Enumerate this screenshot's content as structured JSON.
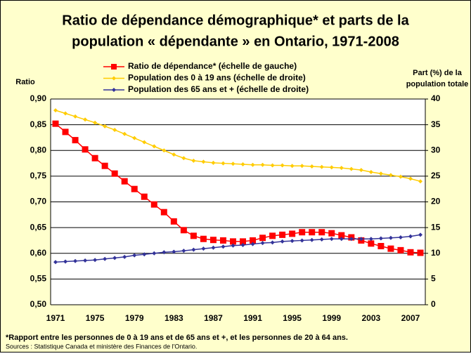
{
  "chart_data": {
    "type": "line",
    "title": [
      "Ratio de dépendance démographique* et parts de la",
      "population « dépendante » en Ontario, 1971-2008"
    ],
    "ylabel": "Ratio",
    "y2label": [
      "Part (%) de la",
      "population totale"
    ],
    "categories": [
      "1971",
      null,
      null,
      null,
      "1975",
      null,
      null,
      null,
      "1979",
      null,
      null,
      null,
      "1983",
      null,
      null,
      null,
      "1987",
      null,
      null,
      null,
      "1991",
      null,
      null,
      null,
      "1995",
      null,
      null,
      null,
      "1999",
      null,
      null,
      null,
      "2003",
      null,
      null,
      null,
      "2007",
      null
    ],
    "series": [
      {
        "name": "Ratio de dépendance* (échelle de gauche)",
        "color": "#ff0000",
        "marker": "square",
        "values": [
          0.852,
          0.836,
          0.82,
          0.802,
          0.785,
          0.77,
          0.755,
          0.74,
          0.725,
          0.71,
          0.695,
          0.68,
          0.662,
          0.645,
          0.634,
          0.628,
          0.626,
          0.625,
          0.623,
          0.623,
          0.625,
          0.63,
          0.634,
          0.636,
          0.638,
          0.641,
          0.641,
          0.641,
          0.639,
          0.635,
          0.631,
          0.625,
          0.619,
          0.614,
          0.609,
          0.606,
          0.602,
          0.601
        ]
      },
      {
        "name": "Population des 0 à 19 ans (échelle de droite)",
        "color": "#ffcc00",
        "marker": "diamond",
        "axis": "y2",
        "values": [
          37.8,
          37.2,
          36.6,
          36.0,
          35.4,
          34.7,
          34.0,
          33.2,
          32.4,
          31.6,
          30.8,
          30.0,
          29.2,
          28.5,
          28.0,
          27.8,
          27.6,
          27.5,
          27.4,
          27.3,
          27.2,
          27.2,
          27.1,
          27.1,
          27.0,
          27.0,
          26.9,
          26.8,
          26.7,
          26.6,
          26.4,
          26.2,
          25.8,
          25.5,
          25.2,
          24.9,
          24.5,
          24.0
        ]
      },
      {
        "name": "Population des 65 ans et + (échelle de droite)",
        "color": "#333399",
        "marker": "diamond",
        "axis": "y2",
        "values": [
          8.3,
          8.4,
          8.5,
          8.6,
          8.7,
          8.9,
          9.1,
          9.3,
          9.6,
          9.8,
          10.0,
          10.2,
          10.3,
          10.5,
          10.7,
          10.9,
          11.1,
          11.3,
          11.5,
          11.6,
          11.8,
          12.0,
          12.1,
          12.3,
          12.4,
          12.5,
          12.6,
          12.7,
          12.8,
          12.8,
          12.8,
          12.8,
          12.8,
          12.9,
          13.0,
          13.1,
          13.3,
          13.6
        ]
      }
    ],
    "ylim": [
      0.5,
      0.9
    ],
    "yticks": [
      {
        "value": 0.5,
        "label": "0,50"
      },
      {
        "value": 0.55,
        "label": "0,55"
      },
      {
        "value": 0.6,
        "label": "0,60"
      },
      {
        "value": 0.65,
        "label": "0,65"
      },
      {
        "value": 0.7,
        "label": "0,70"
      },
      {
        "value": 0.75,
        "label": "0,75"
      },
      {
        "value": 0.8,
        "label": "0,80"
      },
      {
        "value": 0.85,
        "label": "0,85"
      },
      {
        "value": 0.9,
        "label": "0,90"
      }
    ],
    "y2lim": [
      0,
      40
    ],
    "y2ticks": [
      0,
      5,
      10,
      15,
      20,
      25,
      30,
      35,
      40
    ],
    "grid": true,
    "legend": "top",
    "footnote": "*Rapport entre les personnes de 0 à 19 ans et de 65 ans et +, et les personnes de 20 à 64 ans.",
    "source": "Sources : Statistique Canada et ministère des Finances de l'Ontario."
  }
}
